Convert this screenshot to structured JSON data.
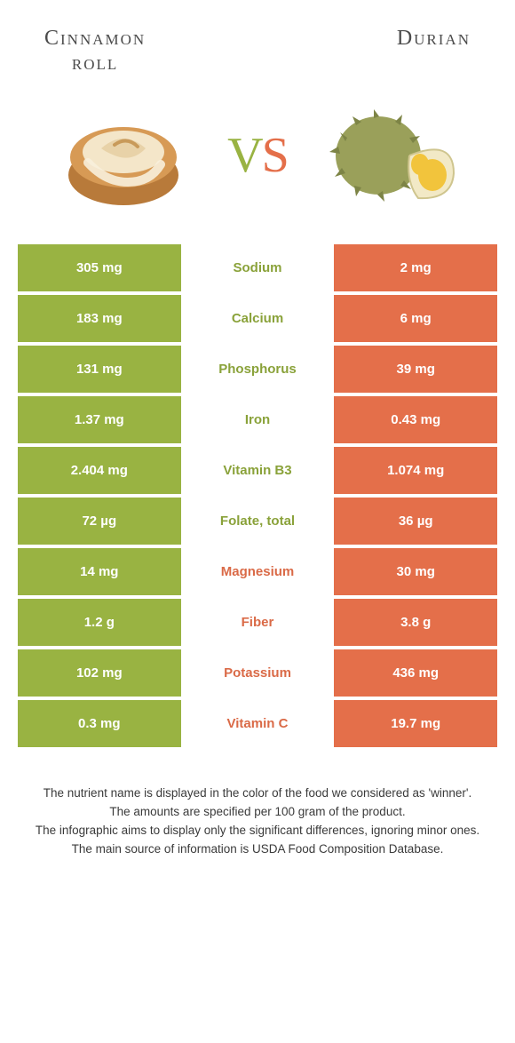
{
  "header": {
    "left_title_line1": "Cinnamon",
    "left_title_line2": "roll",
    "right_title": "Durian",
    "vs_v": "V",
    "vs_s": "S"
  },
  "colors": {
    "green": "#99b342",
    "orange": "#e46f4a",
    "green_text": "#8aa23a",
    "orange_text": "#da6a47"
  },
  "rows": [
    {
      "left": "305 mg",
      "name": "Sodium",
      "right": "2 mg",
      "winner": "green"
    },
    {
      "left": "183 mg",
      "name": "Calcium",
      "right": "6 mg",
      "winner": "green"
    },
    {
      "left": "131 mg",
      "name": "Phosphorus",
      "right": "39 mg",
      "winner": "green"
    },
    {
      "left": "1.37 mg",
      "name": "Iron",
      "right": "0.43 mg",
      "winner": "green"
    },
    {
      "left": "2.404 mg",
      "name": "Vitamin B3",
      "right": "1.074 mg",
      "winner": "green"
    },
    {
      "left": "72 µg",
      "name": "Folate, total",
      "right": "36 µg",
      "winner": "green"
    },
    {
      "left": "14 mg",
      "name": "Magnesium",
      "right": "30 mg",
      "winner": "orange"
    },
    {
      "left": "1.2 g",
      "name": "Fiber",
      "right": "3.8 g",
      "winner": "orange"
    },
    {
      "left": "102 mg",
      "name": "Potassium",
      "right": "436 mg",
      "winner": "orange"
    },
    {
      "left": "0.3 mg",
      "name": "Vitamin C",
      "right": "19.7 mg",
      "winner": "orange"
    }
  ],
  "footer": {
    "l1": "The nutrient name is displayed in the color of the food we considered as 'winner'.",
    "l2": "The amounts are specified per 100 gram of the product.",
    "l3": "The infographic aims to display only the significant differences, ignoring minor ones.",
    "l4": "The main source of information is USDA Food Composition Database."
  }
}
